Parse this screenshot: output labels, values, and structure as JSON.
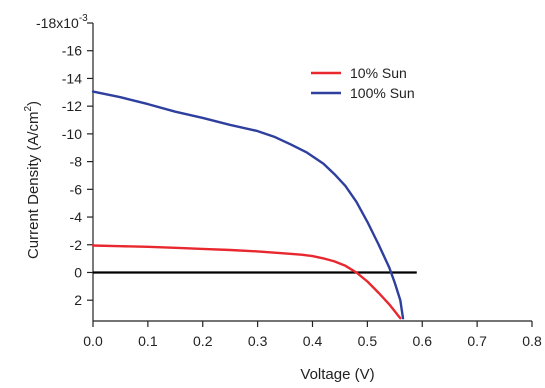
{
  "chart_data": {
    "type": "line",
    "title": "",
    "xlabel": "Voltage (V)",
    "ylabel_prefix": "Current Density (A/cm",
    "ylabel_sup": "2",
    "ylabel_suffix": ")",
    "xlim": [
      0,
      0.8
    ],
    "ylim": [
      -18,
      3.5
    ],
    "y_inverted": true,
    "y_multiplier_text": "-18x10",
    "y_multiplier_exp": "-3",
    "x_ticks": [
      0.0,
      0.1,
      0.2,
      0.3,
      0.4,
      0.5,
      0.6,
      0.7,
      0.8
    ],
    "x_tick_labels": [
      "0.0",
      "0.1",
      "0.2",
      "0.3",
      "0.4",
      "0.5",
      "0.6",
      "0.7",
      "0.8"
    ],
    "y_ticks": [
      -16,
      -14,
      -12,
      -10,
      -8,
      -6,
      -4,
      -2,
      0,
      2
    ],
    "y_tick_labels": [
      "-16",
      "-14",
      "-12",
      "-10",
      "-8",
      "-6",
      "-4",
      "-2",
      "0",
      "2"
    ],
    "grid": false,
    "legend_position": "top-right",
    "zero_line": {
      "y": 0,
      "x_range": [
        0,
        0.59
      ],
      "color": "#000000"
    },
    "series": [
      {
        "name": "10% Sun",
        "color": "#e8282e",
        "x": [
          0.0,
          0.05,
          0.1,
          0.15,
          0.2,
          0.25,
          0.3,
          0.35,
          0.38,
          0.4,
          0.42,
          0.44,
          0.46,
          0.48,
          0.5,
          0.52,
          0.54,
          0.56
        ],
        "y": [
          -1.95,
          -1.9,
          -1.85,
          -1.78,
          -1.7,
          -1.62,
          -1.52,
          -1.38,
          -1.28,
          -1.18,
          -1.02,
          -0.8,
          -0.48,
          0.0,
          0.65,
          1.45,
          2.3,
          3.3
        ]
      },
      {
        "name": "100% Sun",
        "color": "#2e3f9e",
        "x": [
          0.0,
          0.05,
          0.1,
          0.15,
          0.2,
          0.25,
          0.3,
          0.33,
          0.36,
          0.39,
          0.42,
          0.44,
          0.46,
          0.48,
          0.5,
          0.52,
          0.54,
          0.55,
          0.56,
          0.565
        ],
        "y": [
          -13.05,
          -12.65,
          -12.15,
          -11.6,
          -11.15,
          -10.65,
          -10.2,
          -9.8,
          -9.25,
          -8.65,
          -7.85,
          -7.1,
          -6.25,
          -5.1,
          -3.65,
          -2.05,
          -0.35,
          0.75,
          2.0,
          3.3
        ]
      }
    ]
  }
}
